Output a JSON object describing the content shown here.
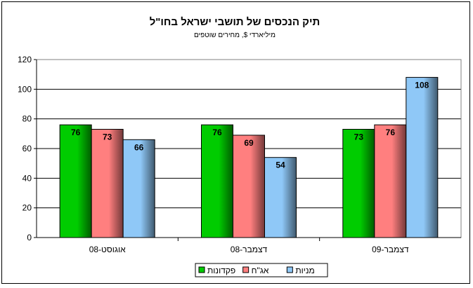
{
  "chart_data": {
    "type": "bar",
    "title": "תיק הנכסים של תושבי ישראל בחו\"ל",
    "subtitle": "מיליארדי $, מחירים שוטפים",
    "categories": [
      "אוגוסט-08",
      "דצמבר-08",
      "דצמבר-09"
    ],
    "series": [
      {
        "name": "פקדונות",
        "values": [
          76,
          76,
          73
        ],
        "color": "#00cc00"
      },
      {
        "name": "אג\"ח",
        "values": [
          73,
          69,
          76
        ],
        "color": "#ff7f7f"
      },
      {
        "name": "מניות",
        "values": [
          66,
          54,
          108
        ],
        "color": "#8fc8f7"
      }
    ],
    "ylim": [
      0,
      120
    ],
    "yticks": [
      0,
      20,
      40,
      60,
      80,
      100,
      120
    ],
    "grid": true,
    "legend_position": "bottom-center"
  }
}
